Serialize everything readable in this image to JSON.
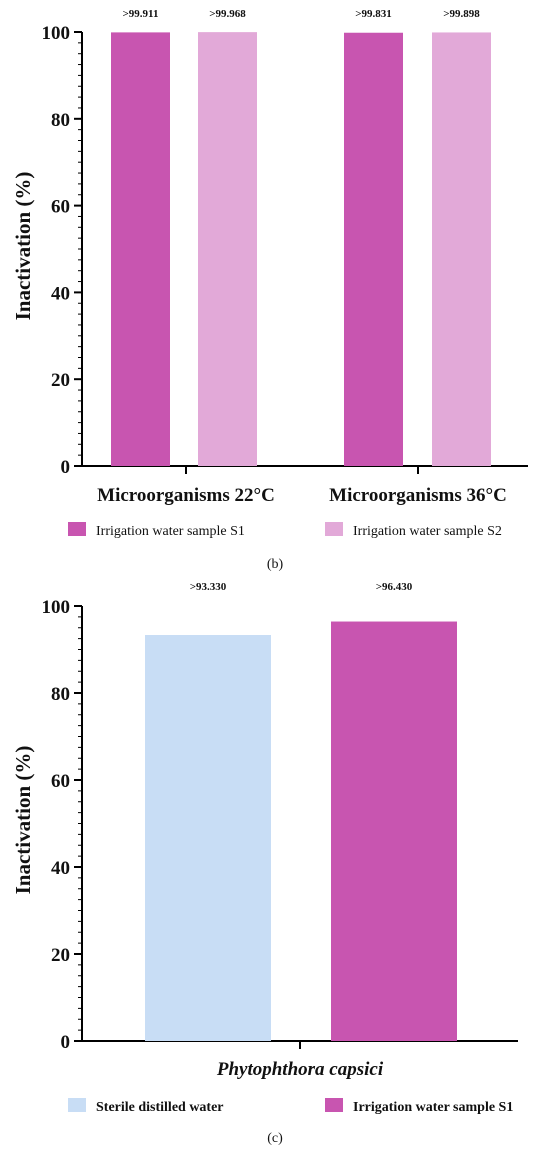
{
  "chart_data": [
    {
      "type": "bar",
      "panel_label": "(b)",
      "categories": [
        "Microorganisms 22°C",
        "Microorganisms 36°C"
      ],
      "series": [
        {
          "name": "Irrigation water sample S1",
          "color": "#c855b0",
          "values": [
            99.911,
            99.831
          ],
          "labels": [
            ">99.911",
            ">99.831"
          ]
        },
        {
          "name": "Irrigation water sample S2",
          "color": "#e2a9d8",
          "values": [
            99.968,
            99.898
          ],
          "labels": [
            ">99.968",
            ">99.898"
          ]
        }
      ],
      "ylabel": "Inactivation (%)",
      "ylim": [
        0,
        100
      ],
      "yticks": [
        "0",
        "20",
        "40",
        "60",
        "80",
        "100"
      ],
      "legend_position": "bottom",
      "grid": false
    },
    {
      "type": "bar",
      "panel_label": "(c)",
      "categories": [
        "Phytophthora capsici"
      ],
      "series": [
        {
          "name": "Sterile distilled water",
          "color": "#c8ddf5",
          "values": [
            93.33
          ],
          "labels": [
            ">93.330"
          ]
        },
        {
          "name": "Irrigation water sample S1",
          "color": "#c855b0",
          "values": [
            96.43
          ],
          "labels": [
            ">96.430"
          ]
        }
      ],
      "ylabel": "Inactivation (%)",
      "ylim": [
        0,
        100
      ],
      "yticks": [
        "0",
        "20",
        "40",
        "60",
        "80",
        "100"
      ],
      "legend_position": "bottom",
      "grid": false
    }
  ]
}
